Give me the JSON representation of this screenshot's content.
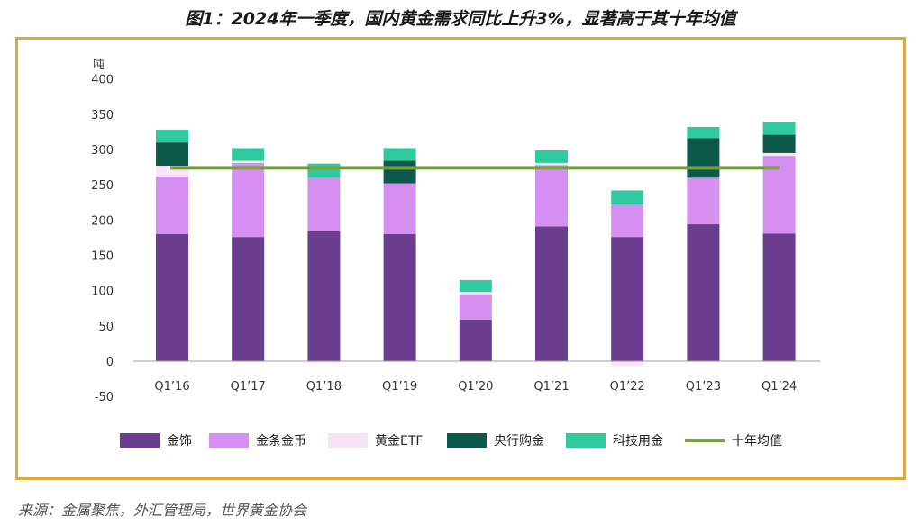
{
  "figure_title": "图1：2024年一季度，国内黄金需求同比上升3%，显著高于其十年均值",
  "source_note": "来源：金属聚焦，外汇管理局，世界黄金协会",
  "chart_data": {
    "type": "bar",
    "stacked": true,
    "unit_label": "吨",
    "categories": [
      "Q1’16",
      "Q1’17",
      "Q1’18",
      "Q1’19",
      "Q1’20",
      "Q1’21",
      "Q1’22",
      "Q1’23",
      "Q1’24"
    ],
    "series": [
      {
        "name": "金饰",
        "color": "#6a3d8f",
        "values": [
          180,
          176,
          184,
          180,
          59,
          191,
          176,
          194,
          181
        ]
      },
      {
        "name": "金条金币",
        "color": "#d48ff0",
        "values": [
          82,
          105,
          76,
          72,
          36,
          87,
          46,
          66,
          110
        ]
      },
      {
        "name": "黄金ETF",
        "color": "#f7e4f7",
        "values": [
          15,
          3,
          -2,
          0,
          3,
          3,
          -7,
          0,
          4
        ]
      },
      {
        "name": "央行购金",
        "color": "#0d5a4c",
        "values": [
          33,
          0,
          0,
          32,
          0,
          0,
          0,
          56,
          26
        ]
      },
      {
        "name": "科技用金",
        "color": "#2fcaa0",
        "values": [
          18,
          18,
          20,
          18,
          17,
          18,
          20,
          16,
          18
        ]
      }
    ],
    "line": {
      "name": "十年均值",
      "color": "#77a040",
      "value": 274
    },
    "ylim": [
      -50,
      400
    ],
    "yticks": [
      -50,
      0,
      50,
      100,
      150,
      200,
      250,
      300,
      350,
      400
    ],
    "grid": false,
    "legend": "bottom"
  }
}
